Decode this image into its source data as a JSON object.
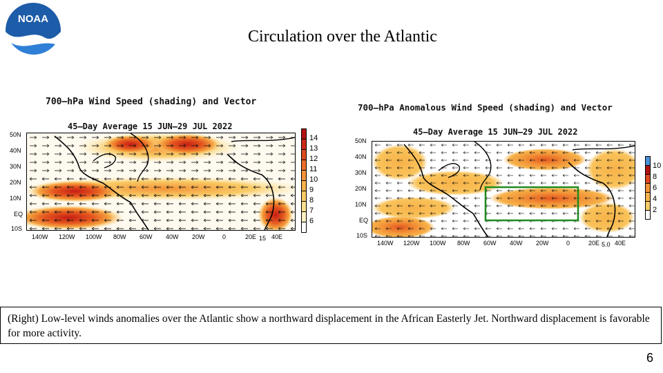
{
  "logo": {
    "text": "NOAA",
    "color": "#1d5ca8"
  },
  "slide": {
    "title": "Circulation over the Atlantic",
    "caption": "(Right) Low-level  winds anomalies  over the Atlantic  show a northward displacement in the African Easterly Jet. Northward displacement is favorable for more activity.",
    "page_number": "6"
  },
  "chart_data": [
    {
      "type": "heatmap",
      "title": "700–hPa Wind Speed (shading) and Vector",
      "subtitle": "45–Day Average 15 JUN–29 JUL 2022",
      "y_ticks": [
        "50N",
        "40N",
        "30N",
        "20N",
        "10N",
        "EQ",
        "10S"
      ],
      "x_ticks": [
        "140W",
        "120W",
        "100W",
        "80W",
        "60W",
        "40W",
        "20W",
        "0",
        "20E",
        "40E"
      ],
      "colorbar_levels": [
        "14",
        "13",
        "12",
        "11",
        "10",
        "9",
        "8",
        "7",
        "6"
      ],
      "colorbar_colors": [
        "#b31212",
        "#cc2a17",
        "#de4a1f",
        "#ea6e2a",
        "#f29338",
        "#f7b24a",
        "#f9cb66",
        "#fbe08f",
        "#fdf0c2",
        "#ffffff"
      ],
      "vector_reference": "15"
    },
    {
      "type": "heatmap",
      "title": "700–hPa Anomalous Wind Speed (shading) and Vector",
      "subtitle": "45–Day Average 15 JUN–29 JUL 2022",
      "y_ticks": [
        "50N",
        "40N",
        "30N",
        "20N",
        "10N",
        "EQ",
        "10S"
      ],
      "x_ticks": [
        "140W",
        "120W",
        "100W",
        "80W",
        "60W",
        "40W",
        "20W",
        "0",
        "20E",
        "40E"
      ],
      "colorbar_levels": [
        "10",
        "8",
        "6",
        "4",
        "2"
      ],
      "colorbar_colors": [
        "#4a90d9",
        "#b31212",
        "#de4a1f",
        "#f29338",
        "#f7b24a",
        "#ffffff"
      ],
      "vector_reference": "5.0",
      "highlight_box_color": "#1f8a1f"
    }
  ]
}
